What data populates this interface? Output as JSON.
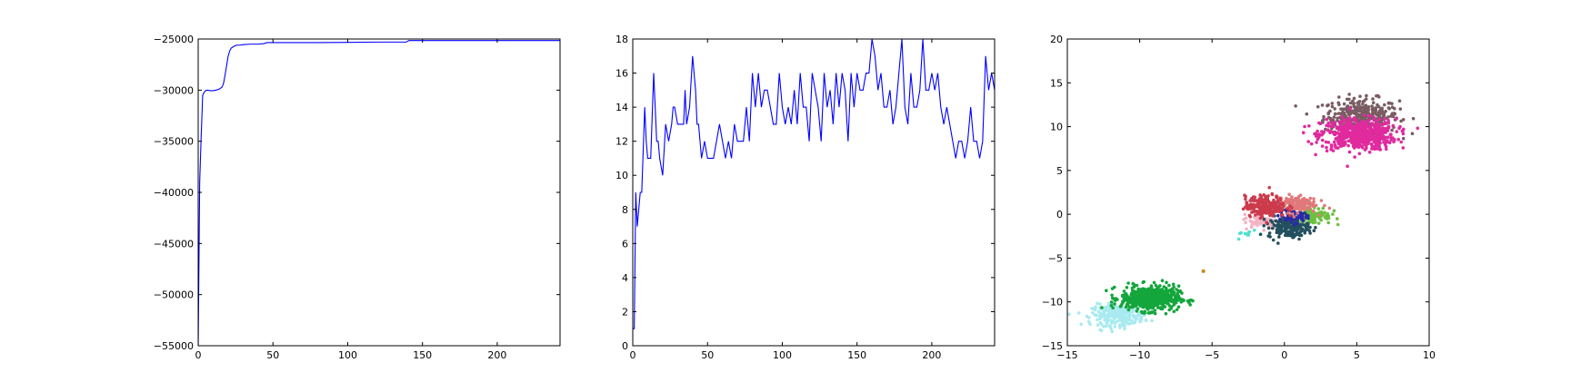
{
  "chart_data": [
    {
      "type": "line",
      "title": "",
      "xlabel": "",
      "ylabel": "",
      "xlim": [
        0,
        242
      ],
      "ylim": [
        -55000,
        -25000
      ],
      "x_ticks": [
        0,
        50,
        100,
        150,
        200
      ],
      "y_ticks": [
        -55000,
        -50000,
        -45000,
        -40000,
        -35000,
        -30000,
        -25000
      ],
      "x_tick_labels": [
        "0",
        "50",
        "100",
        "150",
        "200"
      ],
      "y_tick_labels": [
        "−55000",
        "−50000",
        "−45000",
        "−40000",
        "−35000",
        "−30000",
        "−25000"
      ],
      "grid": false,
      "color": "#0000ff",
      "series": [
        {
          "x": [
            0,
            1,
            2,
            3,
            4,
            5,
            6,
            8,
            10,
            12,
            14,
            16,
            17,
            18,
            19,
            20,
            21,
            22,
            24,
            26,
            28,
            30,
            35,
            40,
            44,
            46,
            60,
            80,
            100,
            120,
            139,
            141,
            160,
            200,
            242
          ],
          "y": [
            -55000,
            -39000,
            -34500,
            -30500,
            -30200,
            -30050,
            -30000,
            -30050,
            -30050,
            -30000,
            -29900,
            -29700,
            -29300,
            -28500,
            -27600,
            -26700,
            -26200,
            -25900,
            -25700,
            -25600,
            -25600,
            -25550,
            -25500,
            -25500,
            -25450,
            -25350,
            -25350,
            -25350,
            -25330,
            -25300,
            -25300,
            -25150,
            -25150,
            -25150,
            -25150
          ]
        }
      ]
    },
    {
      "type": "line",
      "title": "",
      "xlabel": "",
      "ylabel": "",
      "xlim": [
        0,
        242
      ],
      "ylim": [
        0,
        18
      ],
      "x_ticks": [
        0,
        50,
        100,
        150,
        200
      ],
      "y_ticks": [
        0,
        2,
        4,
        6,
        8,
        10,
        12,
        14,
        16,
        18
      ],
      "x_tick_labels": [
        "0",
        "50",
        "100",
        "150",
        "200"
      ],
      "y_tick_labels": [
        "0",
        "2",
        "4",
        "6",
        "8",
        "10",
        "12",
        "14",
        "16",
        "18"
      ],
      "grid": false,
      "color": "#0000ff",
      "series": [
        {
          "x": [
            0,
            1,
            2,
            3,
            4,
            5,
            6,
            8,
            9,
            10,
            11,
            12,
            14,
            16,
            17,
            18,
            20,
            22,
            24,
            26,
            27,
            28,
            30,
            32,
            34,
            35,
            36,
            38,
            40,
            42,
            43,
            44,
            46,
            48,
            50,
            52,
            54,
            56,
            58,
            60,
            62,
            64,
            66,
            68,
            70,
            72,
            74,
            76,
            78,
            80,
            82,
            84,
            86,
            88,
            90,
            92,
            94,
            96,
            98,
            100,
            102,
            104,
            106,
            108,
            110,
            112,
            114,
            116,
            118,
            120,
            122,
            124,
            126,
            128,
            130,
            132,
            134,
            136,
            138,
            140,
            142,
            144,
            146,
            148,
            150,
            152,
            154,
            156,
            158,
            160,
            162,
            164,
            166,
            168,
            170,
            172,
            174,
            176,
            178,
            180,
            182,
            184,
            186,
            188,
            190,
            192,
            194,
            196,
            198,
            200,
            202,
            204,
            206,
            208,
            210,
            212,
            214,
            216,
            218,
            220,
            222,
            224,
            226,
            228,
            230,
            232,
            234,
            236,
            238,
            240,
            242
          ],
          "y": [
            1,
            1,
            9,
            7,
            8,
            9,
            9,
            14,
            12,
            11,
            11,
            11,
            16,
            12,
            12,
            11,
            10,
            13,
            12,
            13,
            14,
            14,
            13,
            13,
            13,
            15,
            13,
            14,
            17,
            15,
            13,
            13,
            11,
            12,
            11,
            11,
            11,
            12,
            13,
            12,
            11,
            12,
            11,
            13,
            12,
            12,
            12,
            14,
            12,
            16,
            14,
            16,
            14,
            15,
            15,
            14,
            13,
            13,
            16,
            14,
            13,
            14,
            13,
            15,
            13,
            16,
            14,
            14,
            12,
            16,
            15,
            14,
            12,
            16,
            14,
            15,
            13,
            16,
            14,
            16,
            15,
            12,
            16,
            14,
            16,
            15,
            15,
            16,
            16,
            18,
            17,
            15,
            16,
            14,
            14,
            15,
            13,
            14,
            16,
            18,
            14,
            13,
            16,
            14,
            14,
            15,
            18,
            15,
            15,
            16,
            15,
            16,
            14,
            13,
            14,
            13,
            12,
            11,
            12,
            12,
            11,
            12,
            14,
            12,
            12,
            11,
            12,
            17,
            15,
            16,
            15
          ]
        }
      ]
    },
    {
      "type": "scatter",
      "title": "",
      "xlabel": "",
      "ylabel": "",
      "xlim": [
        -15,
        10
      ],
      "ylim": [
        -15,
        20
      ],
      "x_ticks": [
        -15,
        -10,
        -5,
        0,
        5,
        10
      ],
      "y_ticks": [
        -15,
        -10,
        -5,
        0,
        5,
        10,
        15,
        20
      ],
      "x_tick_labels": [
        "−15",
        "−10",
        "−5",
        "0",
        "5",
        "10"
      ],
      "y_tick_labels": [
        "−15",
        "−10",
        "−5",
        "0",
        "5",
        "10",
        "15",
        "20"
      ],
      "grid": false,
      "clusters": [
        {
          "color": "#7a5c63",
          "center": [
            5.3,
            11.2
          ],
          "spread": [
            1.3,
            1.0
          ],
          "count": 350
        },
        {
          "color": "#e02a9e",
          "center": [
            5.1,
            9.1
          ],
          "spread": [
            1.3,
            0.9
          ],
          "count": 550
        },
        {
          "color": "#a8eaf0",
          "center": [
            -11.5,
            -11.5
          ],
          "spread": [
            0.9,
            0.6
          ],
          "count": 250
        },
        {
          "color": "#14a63c",
          "center": [
            -9.3,
            -9.6
          ],
          "spread": [
            1.0,
            0.7
          ],
          "count": 550
        },
        {
          "color": "#f4b3c2",
          "center": [
            -1.6,
            -0.8
          ],
          "spread": [
            0.6,
            0.4
          ],
          "count": 70
        },
        {
          "color": "#4fe0d0",
          "center": [
            -2.5,
            -2.2
          ],
          "spread": [
            0.4,
            0.3
          ],
          "count": 10
        },
        {
          "color": "#6cc040",
          "center": [
            2.0,
            -0.1
          ],
          "spread": [
            0.6,
            0.5
          ],
          "count": 120
        },
        {
          "color": "#23505e",
          "center": [
            0.3,
            -1.5
          ],
          "spread": [
            0.7,
            0.6
          ],
          "count": 180
        },
        {
          "color": "#2a2aa8",
          "center": [
            0.6,
            -0.2
          ],
          "spread": [
            0.5,
            0.4
          ],
          "count": 60
        },
        {
          "color": "#e0797a",
          "center": [
            0.8,
            1.2
          ],
          "spread": [
            0.7,
            0.5
          ],
          "count": 140
        },
        {
          "color": "#cc3b4c",
          "center": [
            -1.3,
            0.9
          ],
          "spread": [
            0.7,
            0.6
          ],
          "count": 230
        }
      ],
      "outliers": [
        {
          "x": -5.6,
          "y": -6.5,
          "color": "#c8861a"
        }
      ]
    }
  ]
}
